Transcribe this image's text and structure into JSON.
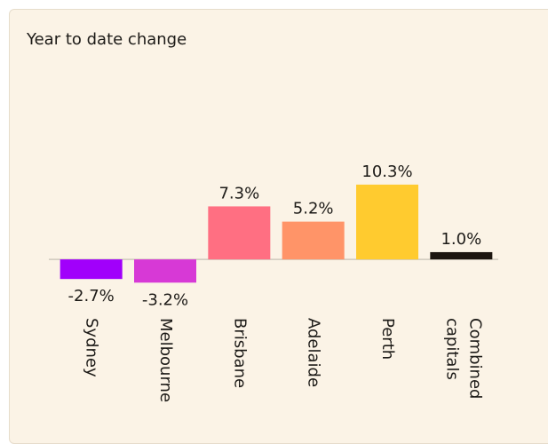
{
  "chart_data": {
    "type": "bar",
    "title": "Year to date change",
    "categories": [
      "Sydney",
      "Melbourne",
      "Brisbane",
      "Adelaide",
      "Perth",
      "Combined capitals"
    ],
    "values": [
      -2.7,
      -3.2,
      7.3,
      5.2,
      10.3,
      1.0
    ],
    "value_labels": [
      "-2.7%",
      "-3.2%",
      "7.3%",
      "5.2%",
      "10.3%",
      "1.0%"
    ],
    "colors": [
      "#a100fb",
      "#d739d6",
      "#ff6f82",
      "#ff9468",
      "#ffcb2f",
      "#1c150f"
    ],
    "ylim": [
      -5,
      12
    ]
  }
}
